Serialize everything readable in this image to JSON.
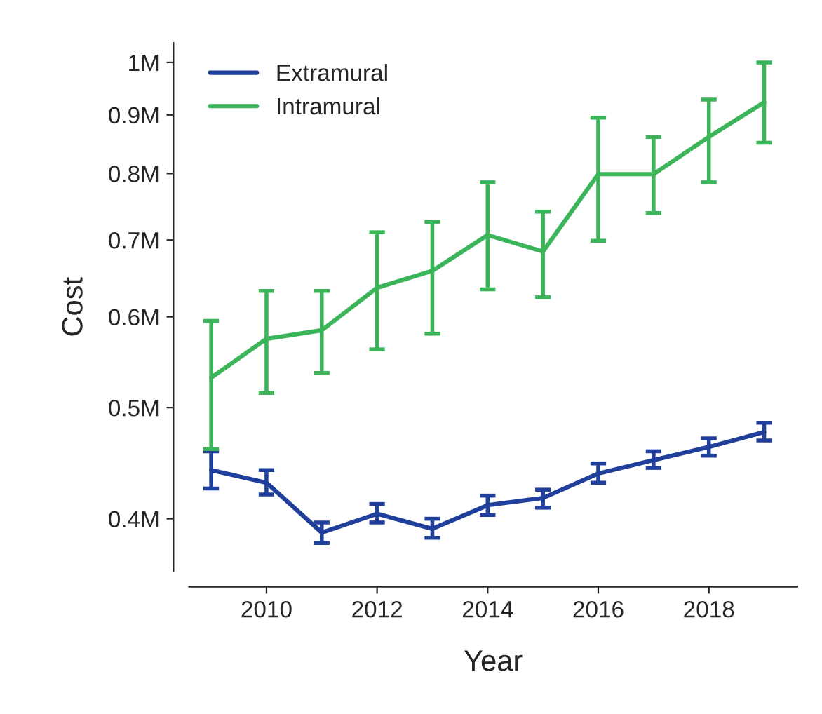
{
  "chart_data": {
    "type": "line",
    "xlabel": "Year",
    "ylabel": "Cost",
    "log": "y",
    "legend": "top left",
    "grid": false,
    "marker": "none",
    "line_style": "solid",
    "x": [
      2009,
      2010,
      2011,
      2012,
      2013,
      2014,
      2015,
      2016,
      2017,
      2018,
      2019
    ],
    "xlim": [
      2008.6,
      2019.6
    ],
    "xticks": [
      2010,
      2012,
      2014,
      2016,
      2018
    ],
    "ylim": [
      360000,
      1040000
    ],
    "yticks": [
      {
        "value": 400000,
        "label": "0.4M"
      },
      {
        "value": 500000,
        "label": "0.5M"
      },
      {
        "value": 600000,
        "label": "0.6M"
      },
      {
        "value": 700000,
        "label": "0.7M"
      },
      {
        "value": 800000,
        "label": "0.8M"
      },
      {
        "value": 900000,
        "label": "0.9M"
      },
      {
        "value": 1000000,
        "label": "1M"
      }
    ],
    "series": [
      {
        "name": "Extramural",
        "color": "#1f3f9a",
        "values": [
          441000,
          430000,
          389000,
          404000,
          392000,
          411000,
          417000,
          438000,
          450000,
          462000,
          476000
        ],
        "errors": [
          [
            425000,
            458000
          ],
          [
            420000,
            441000
          ],
          [
            381000,
            397000
          ],
          [
            397000,
            412000
          ],
          [
            385000,
            400000
          ],
          [
            403000,
            419000
          ],
          [
            409000,
            424000
          ],
          [
            430000,
            447000
          ],
          [
            443000,
            458000
          ],
          [
            454000,
            470000
          ],
          [
            468000,
            485000
          ]
        ]
      },
      {
        "name": "Intramural",
        "color": "#3cb55a",
        "values": [
          531000,
          574000,
          584000,
          636000,
          658000,
          707000,
          684000,
          799000,
          799000,
          861000,
          923000
        ],
        "errors": [
          [
            460000,
            595000
          ],
          [
            515000,
            632000
          ],
          [
            536000,
            632000
          ],
          [
            562000,
            711000
          ],
          [
            580000,
            726000
          ],
          [
            634000,
            786000
          ],
          [
            624000,
            741000
          ],
          [
            699000,
            895000
          ],
          [
            739000,
            861000
          ],
          [
            786000,
            928000
          ],
          [
            851000,
            1000000
          ]
        ]
      }
    ]
  }
}
